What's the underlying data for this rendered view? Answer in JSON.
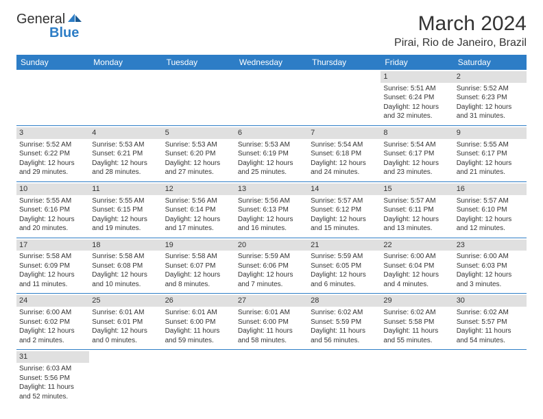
{
  "logo": {
    "general": "General",
    "blue": "Blue"
  },
  "title": "March 2024",
  "location": "Pirai, Rio de Janeiro, Brazil",
  "colors": {
    "header_bg": "#2d7dc6",
    "daynum_bg": "#e0e0e0",
    "text": "#333333"
  },
  "weekdays": [
    "Sunday",
    "Monday",
    "Tuesday",
    "Wednesday",
    "Thursday",
    "Friday",
    "Saturday"
  ],
  "grid": [
    [
      null,
      null,
      null,
      null,
      null,
      {
        "n": "1",
        "sr": "Sunrise: 5:51 AM",
        "ss": "Sunset: 6:24 PM",
        "d1": "Daylight: 12 hours",
        "d2": "and 32 minutes."
      },
      {
        "n": "2",
        "sr": "Sunrise: 5:52 AM",
        "ss": "Sunset: 6:23 PM",
        "d1": "Daylight: 12 hours",
        "d2": "and 31 minutes."
      }
    ],
    [
      {
        "n": "3",
        "sr": "Sunrise: 5:52 AM",
        "ss": "Sunset: 6:22 PM",
        "d1": "Daylight: 12 hours",
        "d2": "and 29 minutes."
      },
      {
        "n": "4",
        "sr": "Sunrise: 5:53 AM",
        "ss": "Sunset: 6:21 PM",
        "d1": "Daylight: 12 hours",
        "d2": "and 28 minutes."
      },
      {
        "n": "5",
        "sr": "Sunrise: 5:53 AM",
        "ss": "Sunset: 6:20 PM",
        "d1": "Daylight: 12 hours",
        "d2": "and 27 minutes."
      },
      {
        "n": "6",
        "sr": "Sunrise: 5:53 AM",
        "ss": "Sunset: 6:19 PM",
        "d1": "Daylight: 12 hours",
        "d2": "and 25 minutes."
      },
      {
        "n": "7",
        "sr": "Sunrise: 5:54 AM",
        "ss": "Sunset: 6:18 PM",
        "d1": "Daylight: 12 hours",
        "d2": "and 24 minutes."
      },
      {
        "n": "8",
        "sr": "Sunrise: 5:54 AM",
        "ss": "Sunset: 6:17 PM",
        "d1": "Daylight: 12 hours",
        "d2": "and 23 minutes."
      },
      {
        "n": "9",
        "sr": "Sunrise: 5:55 AM",
        "ss": "Sunset: 6:17 PM",
        "d1": "Daylight: 12 hours",
        "d2": "and 21 minutes."
      }
    ],
    [
      {
        "n": "10",
        "sr": "Sunrise: 5:55 AM",
        "ss": "Sunset: 6:16 PM",
        "d1": "Daylight: 12 hours",
        "d2": "and 20 minutes."
      },
      {
        "n": "11",
        "sr": "Sunrise: 5:55 AM",
        "ss": "Sunset: 6:15 PM",
        "d1": "Daylight: 12 hours",
        "d2": "and 19 minutes."
      },
      {
        "n": "12",
        "sr": "Sunrise: 5:56 AM",
        "ss": "Sunset: 6:14 PM",
        "d1": "Daylight: 12 hours",
        "d2": "and 17 minutes."
      },
      {
        "n": "13",
        "sr": "Sunrise: 5:56 AM",
        "ss": "Sunset: 6:13 PM",
        "d1": "Daylight: 12 hours",
        "d2": "and 16 minutes."
      },
      {
        "n": "14",
        "sr": "Sunrise: 5:57 AM",
        "ss": "Sunset: 6:12 PM",
        "d1": "Daylight: 12 hours",
        "d2": "and 15 minutes."
      },
      {
        "n": "15",
        "sr": "Sunrise: 5:57 AM",
        "ss": "Sunset: 6:11 PM",
        "d1": "Daylight: 12 hours",
        "d2": "and 13 minutes."
      },
      {
        "n": "16",
        "sr": "Sunrise: 5:57 AM",
        "ss": "Sunset: 6:10 PM",
        "d1": "Daylight: 12 hours",
        "d2": "and 12 minutes."
      }
    ],
    [
      {
        "n": "17",
        "sr": "Sunrise: 5:58 AM",
        "ss": "Sunset: 6:09 PM",
        "d1": "Daylight: 12 hours",
        "d2": "and 11 minutes."
      },
      {
        "n": "18",
        "sr": "Sunrise: 5:58 AM",
        "ss": "Sunset: 6:08 PM",
        "d1": "Daylight: 12 hours",
        "d2": "and 10 minutes."
      },
      {
        "n": "19",
        "sr": "Sunrise: 5:58 AM",
        "ss": "Sunset: 6:07 PM",
        "d1": "Daylight: 12 hours",
        "d2": "and 8 minutes."
      },
      {
        "n": "20",
        "sr": "Sunrise: 5:59 AM",
        "ss": "Sunset: 6:06 PM",
        "d1": "Daylight: 12 hours",
        "d2": "and 7 minutes."
      },
      {
        "n": "21",
        "sr": "Sunrise: 5:59 AM",
        "ss": "Sunset: 6:05 PM",
        "d1": "Daylight: 12 hours",
        "d2": "and 6 minutes."
      },
      {
        "n": "22",
        "sr": "Sunrise: 6:00 AM",
        "ss": "Sunset: 6:04 PM",
        "d1": "Daylight: 12 hours",
        "d2": "and 4 minutes."
      },
      {
        "n": "23",
        "sr": "Sunrise: 6:00 AM",
        "ss": "Sunset: 6:03 PM",
        "d1": "Daylight: 12 hours",
        "d2": "and 3 minutes."
      }
    ],
    [
      {
        "n": "24",
        "sr": "Sunrise: 6:00 AM",
        "ss": "Sunset: 6:02 PM",
        "d1": "Daylight: 12 hours",
        "d2": "and 2 minutes."
      },
      {
        "n": "25",
        "sr": "Sunrise: 6:01 AM",
        "ss": "Sunset: 6:01 PM",
        "d1": "Daylight: 12 hours",
        "d2": "and 0 minutes."
      },
      {
        "n": "26",
        "sr": "Sunrise: 6:01 AM",
        "ss": "Sunset: 6:00 PM",
        "d1": "Daylight: 11 hours",
        "d2": "and 59 minutes."
      },
      {
        "n": "27",
        "sr": "Sunrise: 6:01 AM",
        "ss": "Sunset: 6:00 PM",
        "d1": "Daylight: 11 hours",
        "d2": "and 58 minutes."
      },
      {
        "n": "28",
        "sr": "Sunrise: 6:02 AM",
        "ss": "Sunset: 5:59 PM",
        "d1": "Daylight: 11 hours",
        "d2": "and 56 minutes."
      },
      {
        "n": "29",
        "sr": "Sunrise: 6:02 AM",
        "ss": "Sunset: 5:58 PM",
        "d1": "Daylight: 11 hours",
        "d2": "and 55 minutes."
      },
      {
        "n": "30",
        "sr": "Sunrise: 6:02 AM",
        "ss": "Sunset: 5:57 PM",
        "d1": "Daylight: 11 hours",
        "d2": "and 54 minutes."
      }
    ],
    [
      {
        "n": "31",
        "sr": "Sunrise: 6:03 AM",
        "ss": "Sunset: 5:56 PM",
        "d1": "Daylight: 11 hours",
        "d2": "and 52 minutes."
      },
      null,
      null,
      null,
      null,
      null,
      null
    ]
  ]
}
